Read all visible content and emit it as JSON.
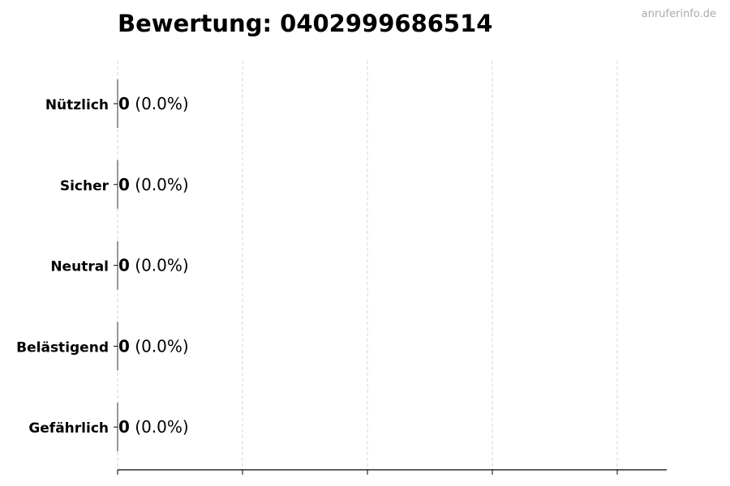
{
  "chart_data": {
    "type": "bar",
    "orientation": "horizontal",
    "title": "Bewertung: 0402999686514",
    "watermark": "anruferinfo.de",
    "categories": [
      "Nützlich",
      "Sicher",
      "Neutral",
      "Belästigend",
      "Gefährlich"
    ],
    "values": [
      0,
      0,
      0,
      0,
      0
    ],
    "percent_labels": [
      "(0.0%)",
      "(0.0%)",
      "(0.0%)",
      "(0.0%)",
      "(0.0%)"
    ],
    "xlabel": "",
    "ylabel": "",
    "x_tick_labels": [],
    "grid": "x dashed",
    "colors": {
      "bar_edge": "#000000",
      "grid": "#cccccc",
      "watermark": "#aaaaaa"
    }
  }
}
